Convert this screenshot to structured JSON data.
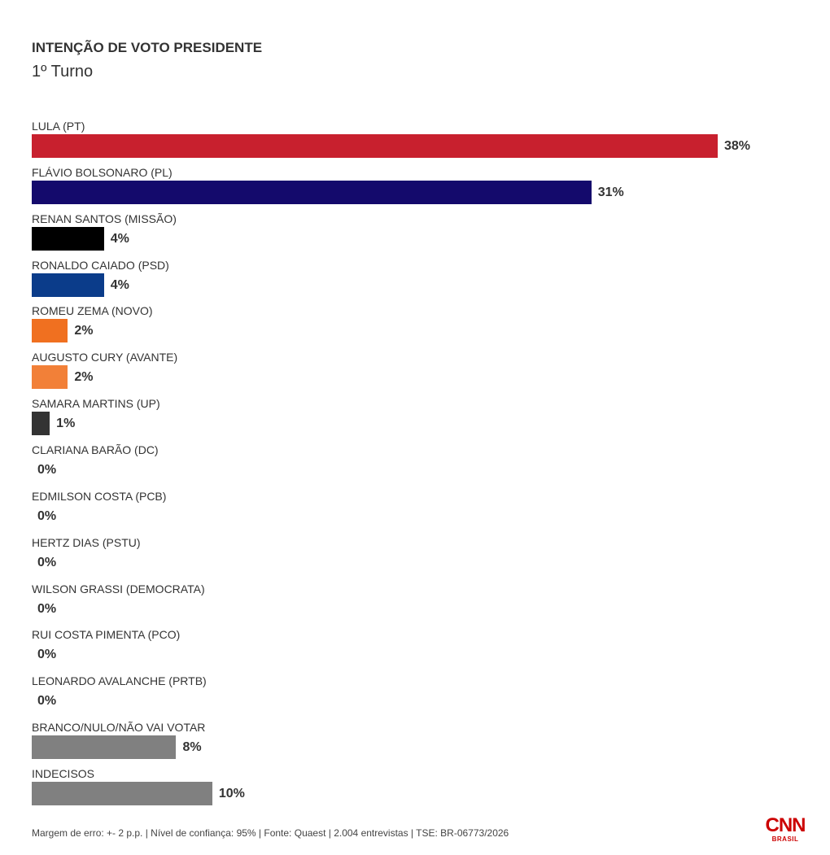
{
  "chart_data": {
    "type": "bar",
    "orientation": "horizontal",
    "title": "INTENÇÃO DE VOTO PRESIDENTE",
    "subtitle": "1º Turno",
    "categories": [
      "LULA (PT)",
      "FLÁVIO BOLSONARO (PL)",
      "RENAN SANTOS (MISSÃO)",
      "RONALDO CAIADO (PSD)",
      "ROMEU ZEMA (NOVO)",
      "AUGUSTO CURY (AVANTE)",
      "SAMARA MARTINS (UP)",
      "CLARIANA BARÃO (DC)",
      "EDMILSON COSTA (PCB)",
      "HERTZ DIAS (PSTU)",
      "WILSON GRASSI (DEMOCRATA)",
      "RUI COSTA PIMENTA (PCO)",
      "LEONARDO AVALANCHE (PRTB)",
      "BRANCO/NULO/NÃO VAI VOTAR",
      "INDECISOS"
    ],
    "values": [
      38,
      31,
      4,
      4,
      2,
      2,
      1,
      0,
      0,
      0,
      0,
      0,
      0,
      8,
      10
    ],
    "value_labels": [
      "38%",
      "31%",
      "4%",
      "4%",
      "2%",
      "2%",
      "1%",
      "0%",
      "0%",
      "0%",
      "0%",
      "0%",
      "0%",
      "8%",
      "10%"
    ],
    "colors": [
      "#c8202e",
      "#140a6c",
      "#000000",
      "#0b3c8a",
      "#f07020",
      "#f28038",
      "#333333",
      null,
      null,
      null,
      null,
      null,
      null,
      "#808080",
      "#808080"
    ],
    "grid": false
  },
  "footer": {
    "note": "Margem de erro: +- 2 p.p. | Nível de confiança: 95% | Fonte: Quaest | 2.004 entrevistas | TSE: BR-06773/2026"
  },
  "logo": {
    "name": "CNN",
    "region": "BRASIL",
    "color": "#cc0000"
  }
}
